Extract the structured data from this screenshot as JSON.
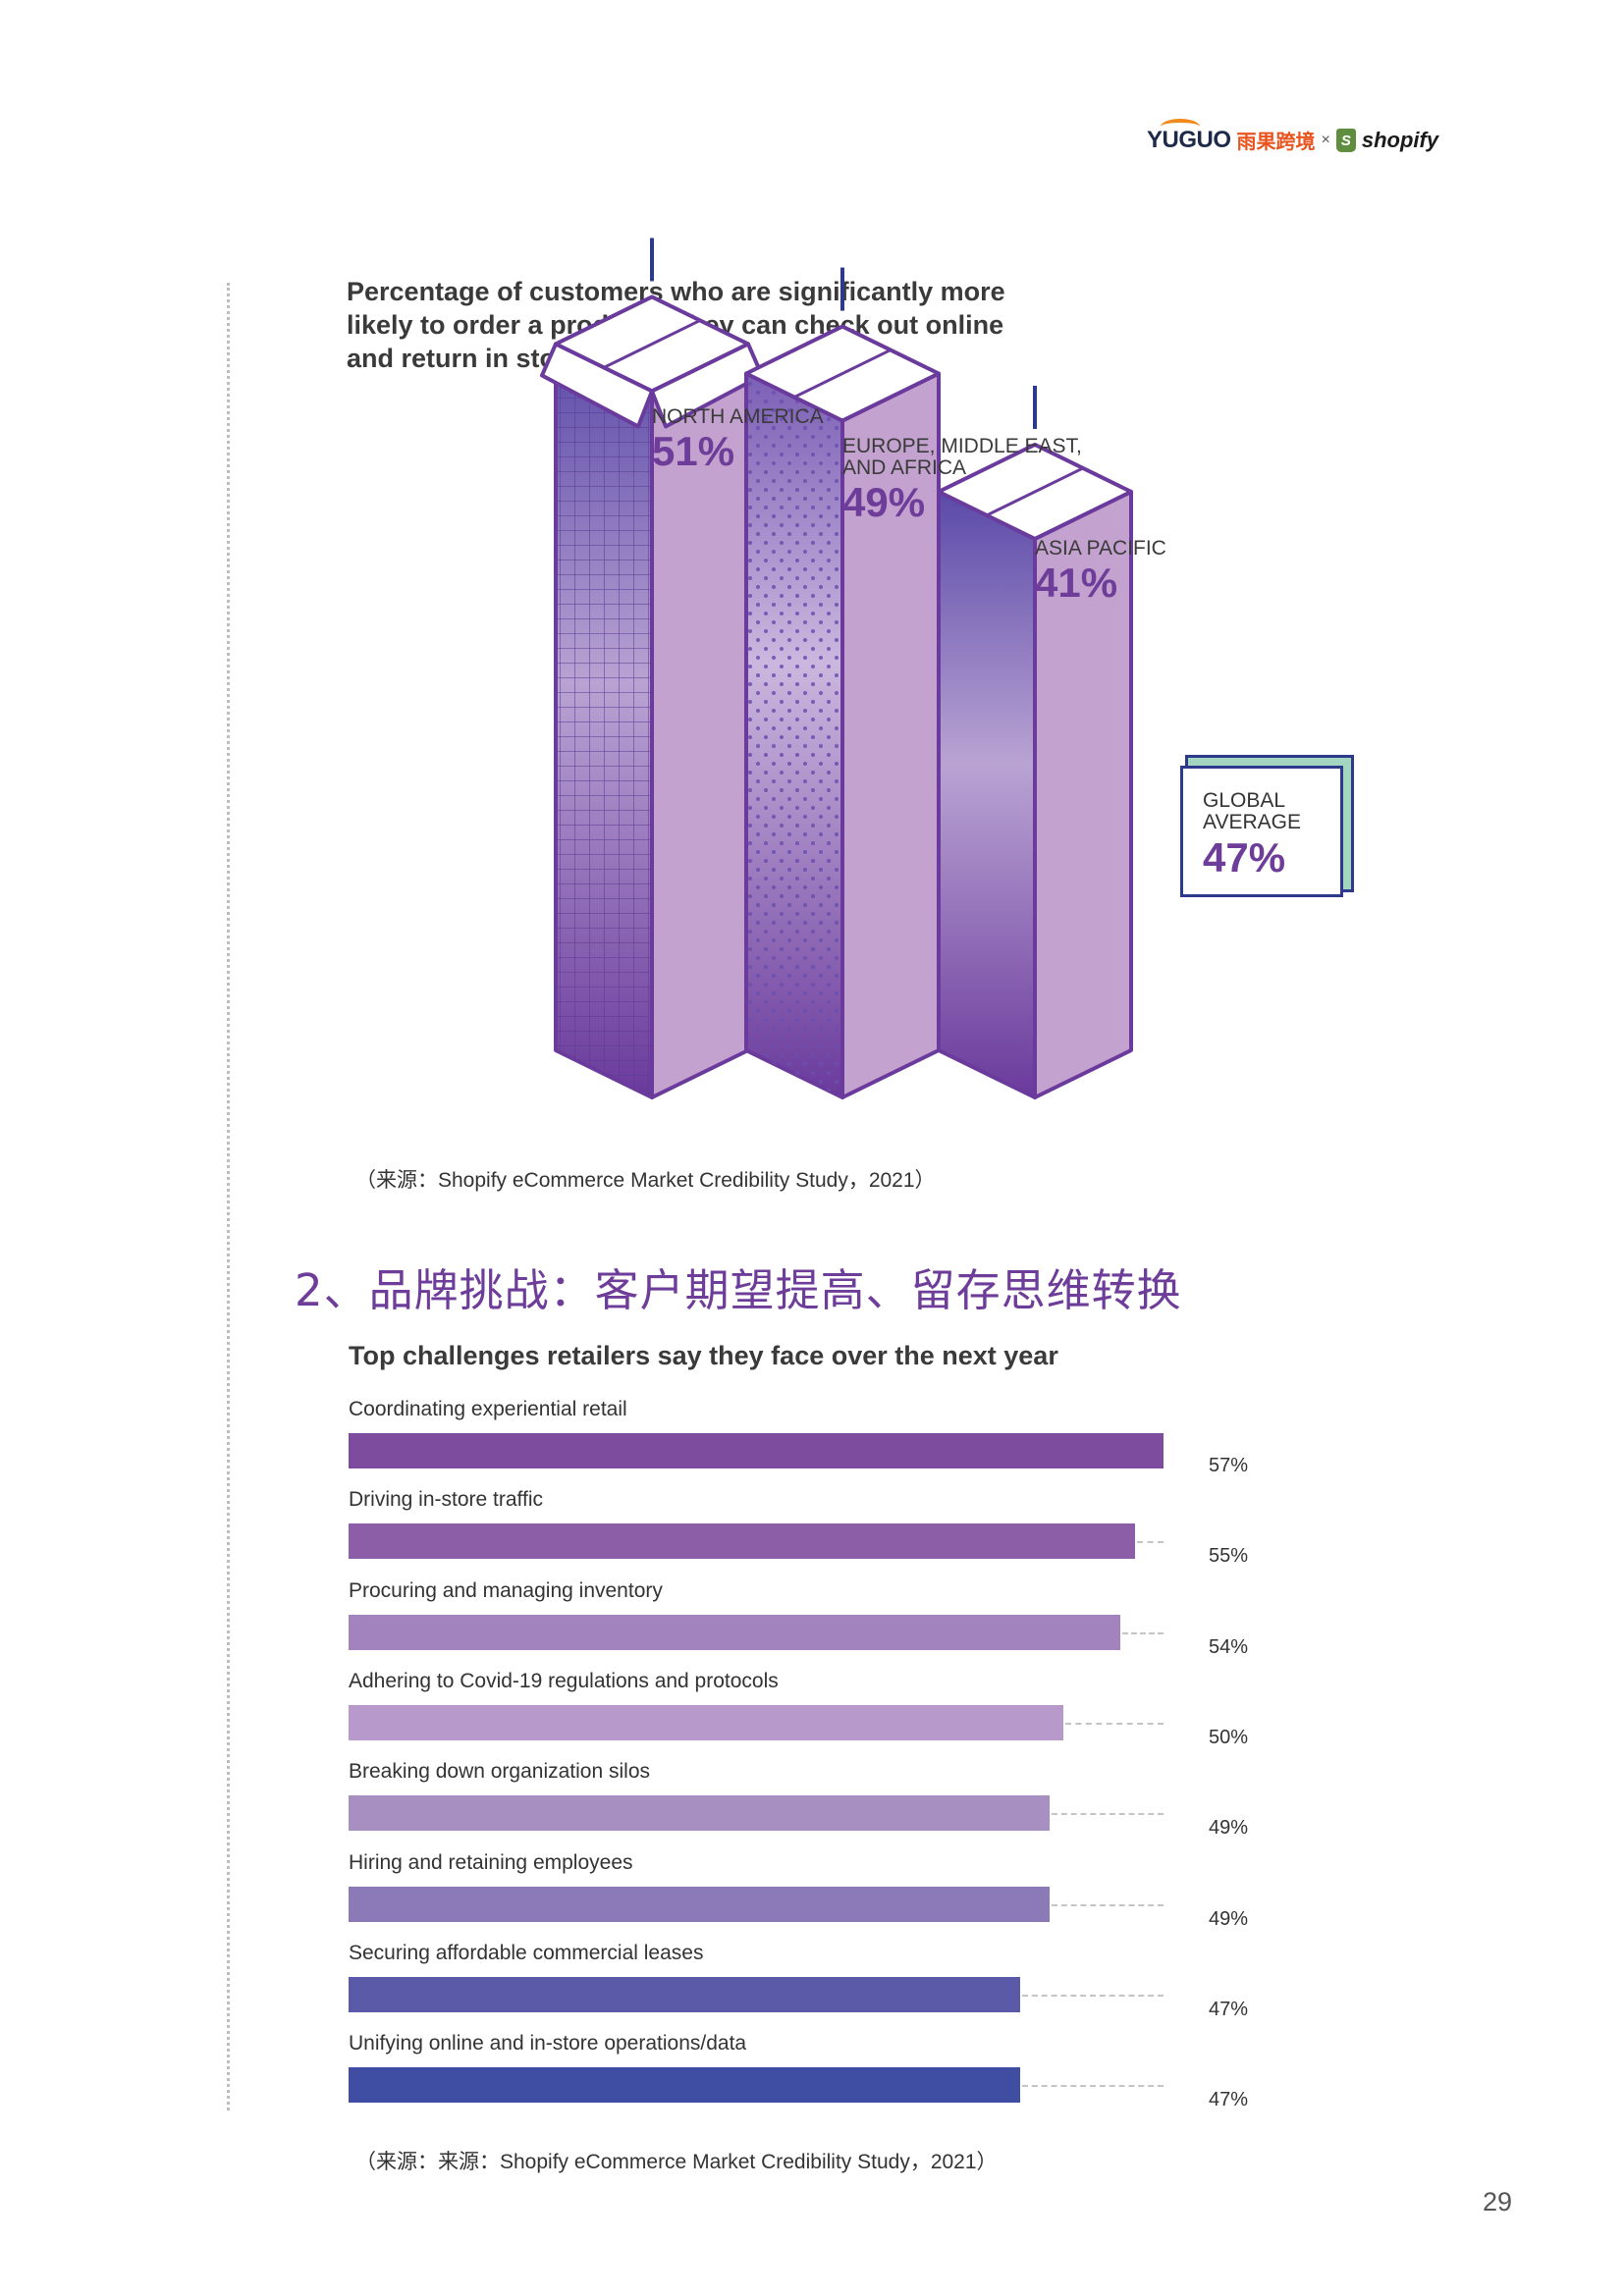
{
  "header": {
    "logo_brand": "YUGUO",
    "logo_cn": "雨果跨境",
    "logo_times": "×",
    "logo_partner": "shopify",
    "partner_bag_letter": "S"
  },
  "chart_data": [
    {
      "type": "bar",
      "title": "Percentage of customers who are significantly more likely to order a product if they can check out online and return in store",
      "categories": [
        "NORTH AMERICA",
        "EUROPE, MIDDLE EAST, AND AFRICA",
        "ASIA PACIFIC"
      ],
      "values": [
        51,
        49,
        41
      ],
      "value_labels": [
        "51%",
        "49%",
        "41%"
      ],
      "unit": "%",
      "annotation": {
        "label": "GLOBAL AVERAGE",
        "value": 47,
        "value_label": "47%"
      },
      "style": "isometric-3d-boxes",
      "source": "（来源：Shopify eCommerce Market Credibility Study，2021）"
    },
    {
      "type": "bar",
      "orientation": "horizontal",
      "title": "Top challenges retailers say they face over the next year",
      "categories": [
        "Coordinating experiential retail",
        "Driving in-store traffic",
        "Procuring and managing inventory",
        "Adhering to Covid-19 regulations and protocols",
        "Breaking down organization silos",
        "Hiring and retaining employees",
        "Securing affordable commercial leases",
        "Unifying online and in-store operations/data"
      ],
      "values": [
        57,
        55,
        54,
        50,
        49,
        49,
        47,
        47
      ],
      "value_labels": [
        "57%",
        "55%",
        "54%",
        "50%",
        "49%",
        "49%",
        "47%",
        "47%"
      ],
      "colors": [
        "#7e4c9f",
        "#8c5ea8",
        "#a283bd",
        "#b899cb",
        "#a88fc2",
        "#8c79b8",
        "#5a5aa8",
        "#3f4ea2"
      ],
      "unit": "%",
      "xlim": [
        0,
        57
      ],
      "source": "（来源：来源：Shopify eCommerce Market Credibility Study，2021）"
    }
  ],
  "section": {
    "heading": "2、品牌挑战：客户期望提高、留存思维转换"
  },
  "page": {
    "number": "29"
  }
}
